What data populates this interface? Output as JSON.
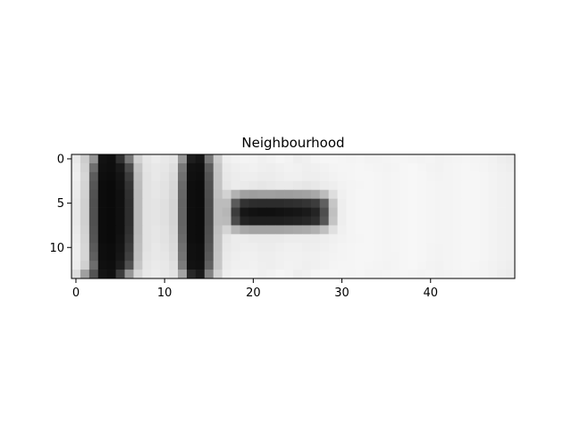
{
  "chart_data": {
    "type": "heatmap",
    "title": "Neighbourhood",
    "colormap": "gray",
    "xlim": [
      -0.5,
      49.5
    ],
    "ylim": [
      13.5,
      -0.5
    ],
    "xticks": [
      0,
      10,
      20,
      30,
      40
    ],
    "yticks": [
      0,
      5,
      10
    ],
    "xtick_labels": [
      "0",
      "10",
      "20",
      "30",
      "40"
    ],
    "ytick_labels": [
      "0",
      "5",
      "10"
    ],
    "rows": 14,
    "cols": 50,
    "value_range": [
      0,
      255
    ],
    "values": [
      [
        232,
        205,
        148,
        18,
        15,
        48,
        120,
        210,
        230,
        236,
        232,
        228,
        150,
        30,
        22,
        120,
        205,
        238,
        242,
        244,
        243,
        240,
        242,
        245,
        243,
        238,
        240,
        244,
        246,
        246,
        245,
        244,
        245,
        243,
        243,
        244,
        245,
        245,
        244,
        243,
        244,
        242,
        243,
        244,
        245,
        244,
        243,
        241,
        238,
        236
      ],
      [
        236,
        210,
        110,
        16,
        14,
        25,
        75,
        195,
        228,
        232,
        230,
        222,
        120,
        18,
        16,
        92,
        198,
        234,
        238,
        240,
        241,
        239,
        238,
        240,
        242,
        241,
        239,
        240,
        242,
        244,
        245,
        245,
        246,
        245,
        244,
        243,
        244,
        246,
        247,
        245,
        243,
        242,
        244,
        245,
        246,
        245,
        244,
        242,
        240,
        238
      ],
      [
        238,
        214,
        92,
        14,
        12,
        20,
        60,
        190,
        226,
        232,
        228,
        218,
        112,
        16,
        14,
        84,
        196,
        232,
        236,
        238,
        238,
        236,
        236,
        238,
        240,
        240,
        238,
        238,
        240,
        242,
        244,
        245,
        246,
        246,
        245,
        244,
        245,
        246,
        247,
        246,
        244,
        243,
        244,
        245,
        246,
        246,
        245,
        243,
        241,
        240
      ],
      [
        236,
        212,
        86,
        12,
        10,
        18,
        52,
        188,
        226,
        230,
        226,
        216,
        106,
        14,
        12,
        80,
        195,
        230,
        236,
        234,
        232,
        230,
        232,
        234,
        234,
        232,
        230,
        232,
        236,
        238,
        242,
        244,
        245,
        246,
        245,
        244,
        245,
        246,
        247,
        246,
        245,
        244,
        244,
        245,
        246,
        246,
        245,
        243,
        241,
        240
      ],
      [
        234,
        210,
        82,
        12,
        10,
        16,
        48,
        186,
        226,
        230,
        226,
        214,
        102,
        14,
        12,
        78,
        192,
        210,
        178,
        160,
        158,
        160,
        160,
        158,
        158,
        160,
        162,
        168,
        188,
        222,
        240,
        244,
        246,
        246,
        245,
        244,
        245,
        246,
        247,
        246,
        245,
        244,
        244,
        245,
        246,
        246,
        245,
        243,
        241,
        240
      ],
      [
        232,
        208,
        80,
        12,
        10,
        16,
        46,
        186,
        226,
        228,
        224,
        212,
        100,
        14,
        12,
        76,
        188,
        188,
        90,
        50,
        45,
        44,
        44,
        44,
        46,
        48,
        52,
        60,
        96,
        198,
        238,
        244,
        246,
        246,
        245,
        244,
        245,
        246,
        247,
        246,
        245,
        244,
        244,
        245,
        246,
        246,
        245,
        243,
        241,
        240
      ],
      [
        232,
        208,
        80,
        12,
        10,
        16,
        46,
        186,
        226,
        228,
        224,
        212,
        100,
        14,
        12,
        76,
        188,
        182,
        60,
        22,
        18,
        16,
        16,
        18,
        20,
        22,
        26,
        36,
        78,
        192,
        238,
        244,
        246,
        246,
        245,
        244,
        245,
        246,
        247,
        246,
        245,
        244,
        244,
        245,
        246,
        246,
        245,
        243,
        241,
        240
      ],
      [
        232,
        208,
        80,
        12,
        10,
        16,
        46,
        186,
        226,
        228,
        224,
        212,
        100,
        14,
        12,
        76,
        188,
        186,
        74,
        34,
        30,
        30,
        30,
        30,
        32,
        34,
        38,
        46,
        86,
        196,
        238,
        244,
        246,
        246,
        245,
        244,
        245,
        246,
        247,
        246,
        245,
        244,
        244,
        245,
        246,
        246,
        245,
        243,
        241,
        240
      ],
      [
        234,
        210,
        82,
        12,
        10,
        16,
        48,
        186,
        226,
        230,
        226,
        214,
        102,
        14,
        12,
        78,
        192,
        212,
        182,
        168,
        164,
        164,
        164,
        164,
        166,
        168,
        170,
        176,
        192,
        224,
        240,
        244,
        246,
        246,
        245,
        244,
        245,
        246,
        247,
        246,
        245,
        244,
        244,
        245,
        246,
        246,
        245,
        243,
        241,
        240
      ],
      [
        236,
        212,
        84,
        12,
        10,
        18,
        52,
        188,
        226,
        230,
        226,
        216,
        106,
        14,
        12,
        80,
        195,
        230,
        236,
        236,
        234,
        234,
        234,
        234,
        236,
        236,
        236,
        236,
        238,
        240,
        242,
        244,
        245,
        246,
        245,
        244,
        245,
        246,
        247,
        246,
        245,
        244,
        244,
        245,
        246,
        246,
        245,
        243,
        241,
        240
      ],
      [
        238,
        214,
        90,
        14,
        12,
        20,
        58,
        190,
        226,
        232,
        228,
        218,
        112,
        16,
        14,
        84,
        196,
        232,
        236,
        238,
        238,
        236,
        236,
        238,
        240,
        240,
        238,
        238,
        240,
        242,
        244,
        245,
        246,
        246,
        245,
        244,
        245,
        246,
        247,
        246,
        244,
        243,
        244,
        245,
        246,
        246,
        245,
        243,
        241,
        240
      ],
      [
        238,
        214,
        96,
        14,
        12,
        22,
        64,
        192,
        228,
        232,
        230,
        220,
        116,
        16,
        14,
        88,
        198,
        234,
        238,
        240,
        240,
        238,
        238,
        240,
        241,
        241,
        240,
        240,
        242,
        243,
        244,
        245,
        246,
        246,
        245,
        244,
        244,
        246,
        247,
        246,
        244,
        243,
        244,
        245,
        246,
        246,
        245,
        243,
        241,
        240
      ],
      [
        236,
        208,
        110,
        16,
        14,
        28,
        80,
        198,
        230,
        234,
        232,
        224,
        124,
        18,
        16,
        96,
        200,
        236,
        240,
        240,
        241,
        239,
        238,
        240,
        242,
        241,
        239,
        240,
        242,
        244,
        245,
        245,
        246,
        245,
        244,
        243,
        244,
        246,
        247,
        245,
        243,
        242,
        244,
        245,
        246,
        245,
        244,
        242,
        240,
        238
      ],
      [
        222,
        160,
        84,
        20,
        16,
        60,
        150,
        215,
        232,
        236,
        232,
        226,
        164,
        40,
        26,
        130,
        210,
        238,
        242,
        244,
        243,
        240,
        242,
        245,
        243,
        238,
        240,
        244,
        246,
        246,
        245,
        244,
        245,
        243,
        243,
        244,
        245,
        245,
        244,
        243,
        244,
        242,
        243,
        244,
        245,
        244,
        243,
        241,
        238,
        236
      ]
    ]
  }
}
